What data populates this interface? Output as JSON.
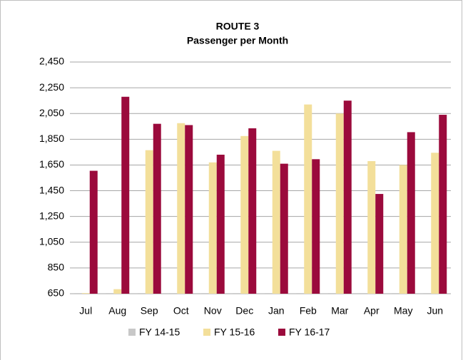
{
  "chart_data": {
    "type": "bar",
    "title": "ROUTE 3",
    "subtitle": "Passenger per Month",
    "categories": [
      "Jul",
      "Aug",
      "Sep",
      "Oct",
      "Nov",
      "Dec",
      "Jan",
      "Feb",
      "Mar",
      "Apr",
      "May",
      "Jun"
    ],
    "series": [
      {
        "name": "FY 14-15",
        "color": "#c8c8c8",
        "values": [
          655,
          655,
          655,
          655,
          655,
          655,
          655,
          655,
          655,
          655,
          655,
          655
        ]
      },
      {
        "name": "FY 15-16",
        "color": "#f3df9a",
        "values": [
          655,
          685,
          1765,
          1975,
          1670,
          1875,
          1760,
          2120,
          2050,
          1680,
          1650,
          1745
        ]
      },
      {
        "name": "FY 16-17",
        "color": "#9b0a3c",
        "values": [
          1605,
          2180,
          1970,
          1960,
          1730,
          1935,
          1660,
          1695,
          2150,
          1425,
          1905,
          2040
        ]
      }
    ],
    "ylim": [
      650,
      2450
    ],
    "yticks": [
      650,
      850,
      {
        "value": 1050,
        "label": "1,050"
      },
      {
        "value": 1250,
        "label": "1,250"
      },
      {
        "value": 1450,
        "label": "1,450"
      },
      {
        "value": 1650,
        "label": "1,650"
      },
      {
        "value": 1850,
        "label": "1,850"
      },
      {
        "value": 2050,
        "label": "2,050"
      },
      {
        "value": 2250,
        "label": "2,250"
      },
      {
        "value": 2450,
        "label": "2,450"
      }
    ],
    "grid": true,
    "legend": "bottom"
  }
}
